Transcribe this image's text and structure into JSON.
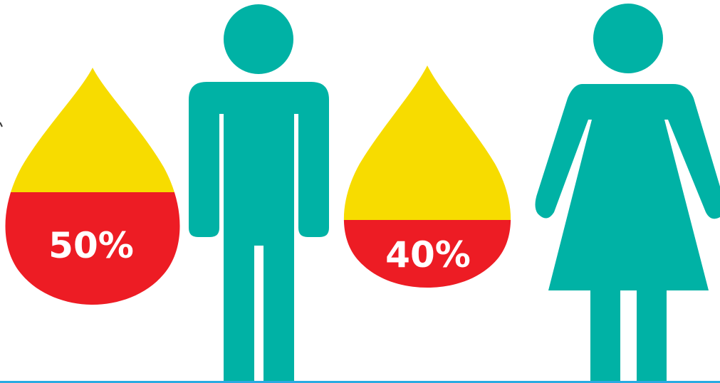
{
  "colors": {
    "figure": "#00B2A5",
    "drop_top": "#F7DC00",
    "drop_fill": "#ED1C24",
    "label": "#FFFFFF",
    "bottom_line": "#29ABE2",
    "edge_mark": "#3A3A3A"
  },
  "drops": [
    {
      "label": "50%",
      "fill_fraction": 0.5
    },
    {
      "label": "40%",
      "fill_fraction": 0.4
    }
  ],
  "figures": [
    {
      "icon": "man-icon"
    },
    {
      "icon": "woman-icon"
    }
  ]
}
